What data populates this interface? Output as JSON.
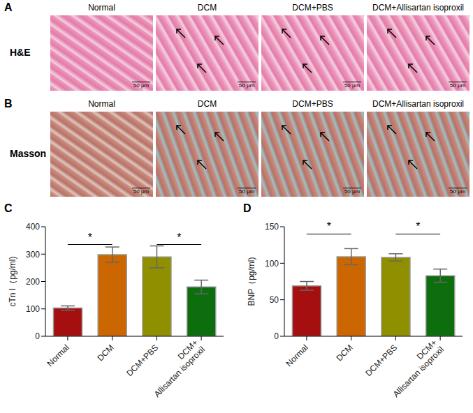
{
  "panels": [
    {
      "letter": "A",
      "row_label": "H&E",
      "images": [
        "Normal",
        "DCM",
        "DCM+PBS",
        "DCM+Allisartan isoproxil"
      ],
      "scale_bar": "50 μm"
    },
    {
      "letter": "B",
      "row_label": "Masson",
      "images": [
        "Normal",
        "DCM",
        "DCM+PBS",
        "DCM+Allisartan isoproxil"
      ],
      "scale_bar": "50 μm"
    }
  ],
  "chart_data": [
    {
      "panel": "C",
      "type": "bar",
      "y_label": "cTn I（pg/ml)",
      "categories": [
        "Normal",
        "DCM",
        "DCM+PBS",
        "DCM+\nAllisartan isoproxil"
      ],
      "values": [
        103,
        298,
        290,
        180
      ],
      "errors": [
        8,
        28,
        40,
        25
      ],
      "colors": [
        "#a50f0f",
        "#cc6600",
        "#8f8f00",
        "#0d6e0d"
      ],
      "ylim": [
        0,
        400
      ],
      "yticks": [
        0,
        100,
        200,
        300,
        400
      ],
      "significance": [
        {
          "from": "Normal",
          "to": "DCM",
          "y": 335,
          "label": "*"
        },
        {
          "from": "DCM+PBS",
          "to": "DCM+\nAllisartan isoproxil",
          "y": 335,
          "label": "*"
        }
      ]
    },
    {
      "panel": "D",
      "type": "bar",
      "y_label": "BNP（pg/ml)",
      "categories": [
        "Normal",
        "DCM",
        "DCM+PBS",
        "DCM+\nAllisartan isoproxil"
      ],
      "values": [
        69,
        109,
        108,
        83
      ],
      "errors": [
        6,
        11,
        5,
        9
      ],
      "colors": [
        "#a50f0f",
        "#cc6600",
        "#8f8f00",
        "#0d6e0d"
      ],
      "ylim": [
        0,
        150
      ],
      "yticks": [
        0,
        50,
        100,
        150
      ],
      "significance": [
        {
          "from": "Normal",
          "to": "DCM",
          "y": 140,
          "label": "*"
        },
        {
          "from": "DCM+PBS",
          "to": "DCM+\nAllisartan isoproxil",
          "y": 140,
          "label": "*"
        }
      ]
    }
  ]
}
